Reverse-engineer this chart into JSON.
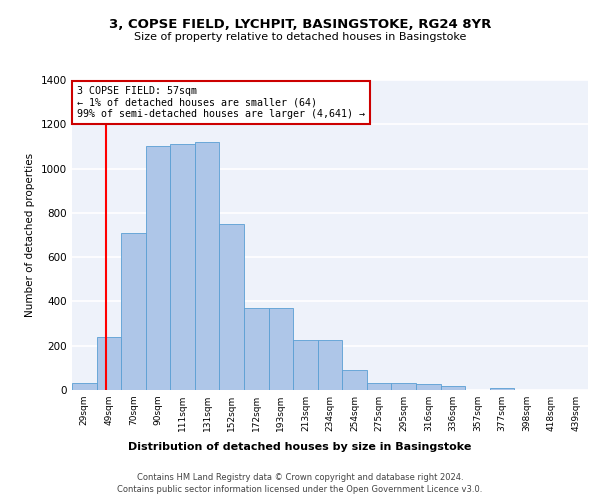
{
  "title": "3, COPSE FIELD, LYCHPIT, BASINGSTOKE, RG24 8YR",
  "subtitle": "Size of property relative to detached houses in Basingstoke",
  "xlabel": "Distribution of detached houses by size in Basingstoke",
  "ylabel": "Number of detached properties",
  "bar_labels": [
    "29sqm",
    "49sqm",
    "70sqm",
    "90sqm",
    "111sqm",
    "131sqm",
    "152sqm",
    "172sqm",
    "193sqm",
    "213sqm",
    "234sqm",
    "254sqm",
    "275sqm",
    "295sqm",
    "316sqm",
    "336sqm",
    "357sqm",
    "377sqm",
    "398sqm",
    "418sqm",
    "439sqm"
  ],
  "bar_values": [
    30,
    240,
    710,
    1100,
    1110,
    1120,
    750,
    370,
    370,
    225,
    225,
    90,
    30,
    30,
    25,
    20,
    0,
    10,
    0,
    0,
    0
  ],
  "bar_color": "#aec6e8",
  "bar_edge_color": "#5a9fd4",
  "background_color": "#eef2fa",
  "grid_color": "#ffffff",
  "annotation_text": "3 COPSE FIELD: 57sqm\n← 1% of detached houses are smaller (64)\n99% of semi-detached houses are larger (4,641) →",
  "annotation_box_color": "#ffffff",
  "annotation_box_edge": "#cc0000",
  "ylim": [
    0,
    1400
  ],
  "yticks": [
    0,
    200,
    400,
    600,
    800,
    1000,
    1200,
    1400
  ],
  "property_sqm": 57,
  "bin_start_sqm": [
    29,
    49,
    70,
    90,
    111,
    131,
    152,
    172,
    193,
    213,
    234,
    254,
    275,
    295,
    316,
    336,
    357,
    377,
    398,
    418,
    439
  ],
  "footer_line1": "Contains HM Land Registry data © Crown copyright and database right 2024.",
  "footer_line2": "Contains public sector information licensed under the Open Government Licence v3.0."
}
